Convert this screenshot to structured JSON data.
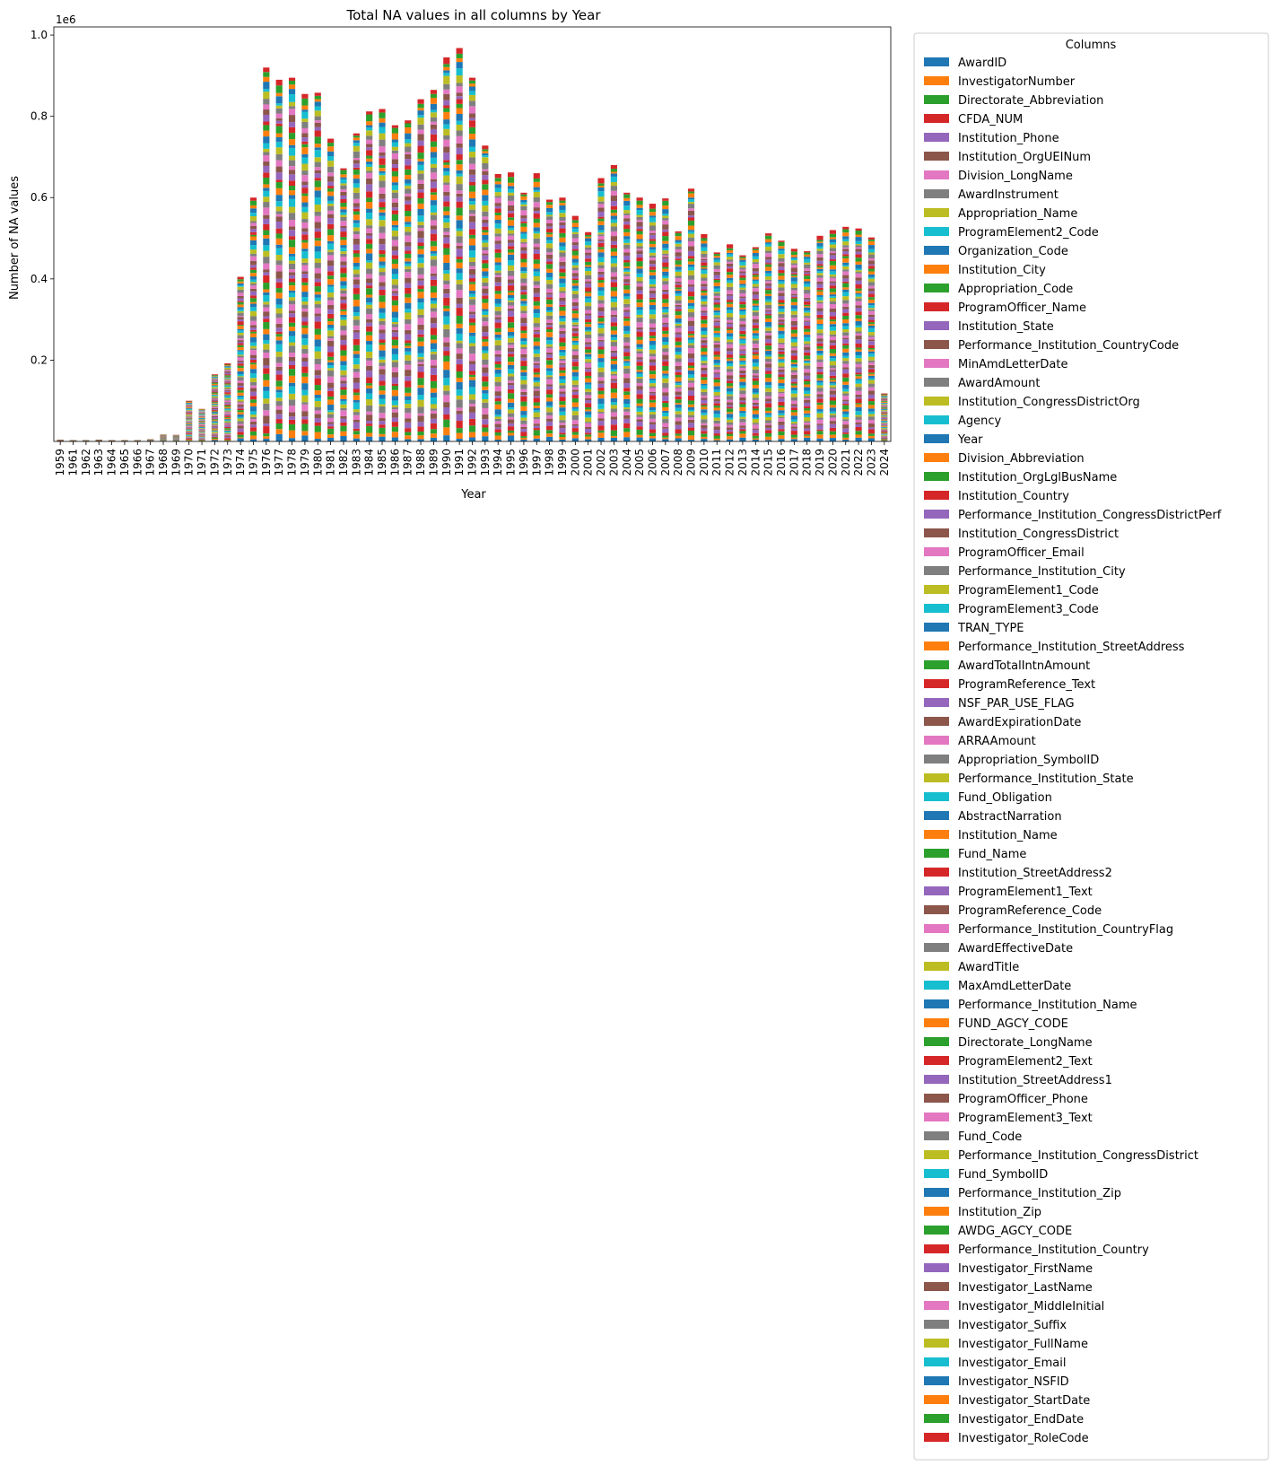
{
  "chart_data": {
    "type": "bar",
    "stacked": true,
    "title": "Total NA values in all columns by Year",
    "xlabel": "Year",
    "ylabel": "Number of NA values",
    "y_offset_label": "1e6",
    "ylim": [
      0,
      1.02
    ],
    "y_ticks": [
      "0.2",
      "0.4",
      "0.6",
      "0.8",
      "1.0"
    ],
    "y_tick_values": [
      0.2,
      0.4,
      0.6,
      0.8,
      1.0
    ],
    "grid": false,
    "legend_title": "Columns",
    "legend_placement": "outside-right",
    "categories": [
      "1959",
      "1961",
      "1962",
      "1963",
      "1964",
      "1965",
      "1966",
      "1967",
      "1968",
      "1969",
      "1970",
      "1971",
      "1972",
      "1973",
      "1974",
      "1975",
      "1976",
      "1977",
      "1978",
      "1979",
      "1980",
      "1981",
      "1982",
      "1983",
      "1984",
      "1985",
      "1986",
      "1987",
      "1988",
      "1989",
      "1990",
      "1991",
      "1992",
      "1993",
      "1994",
      "1995",
      "1996",
      "1997",
      "1998",
      "1999",
      "2000",
      "2001",
      "2002",
      "2003",
      "2004",
      "2005",
      "2006",
      "2007",
      "2008",
      "2009",
      "2010",
      "2011",
      "2012",
      "2013",
      "2014",
      "2015",
      "2016",
      "2017",
      "2018",
      "2019",
      "2020",
      "2021",
      "2022",
      "2023",
      "2024"
    ],
    "totals": [
      0.004,
      0.003,
      0.003,
      0.004,
      0.003,
      0.003,
      0.003,
      0.005,
      0.017,
      0.016,
      0.1,
      0.08,
      0.165,
      0.192,
      0.405,
      0.6,
      0.92,
      0.89,
      0.895,
      0.855,
      0.858,
      0.745,
      0.672,
      0.758,
      0.812,
      0.818,
      0.778,
      0.79,
      0.842,
      0.865,
      0.945,
      0.968,
      0.895,
      0.728,
      0.658,
      0.662,
      0.612,
      0.66,
      0.595,
      0.6,
      0.555,
      0.515,
      0.648,
      0.68,
      0.612,
      0.6,
      0.585,
      0.598,
      0.517,
      0.622,
      0.51,
      0.465,
      0.485,
      0.458,
      0.478,
      0.512,
      0.494,
      0.474,
      0.468,
      0.506,
      0.52,
      0.528,
      0.524,
      0.502,
      0.118
    ],
    "series_names": [
      "AwardID",
      "InvestigatorNumber",
      "Directorate_Abbreviation",
      "CFDA_NUM",
      "Institution_Phone",
      "Institution_OrgUEINum",
      "Division_LongName",
      "AwardInstrument",
      "Appropriation_Name",
      "ProgramElement2_Code",
      "Organization_Code",
      "Institution_City",
      "Appropriation_Code",
      "ProgramOfficer_Name",
      "Institution_State",
      "Performance_Institution_CountryCode",
      "MinAmdLetterDate",
      "AwardAmount",
      "Institution_CongressDistrictOrg",
      "Agency",
      "Year",
      "Division_Abbreviation",
      "Institution_OrgLglBusName",
      "Institution_Country",
      "Performance_Institution_CongressDistrictPerf",
      "Institution_CongressDistrict",
      "ProgramOfficer_Email",
      "Performance_Institution_City",
      "ProgramElement1_Code",
      "ProgramElement3_Code",
      "TRAN_TYPE",
      "Performance_Institution_StreetAddress",
      "AwardTotalIntnAmount",
      "ProgramReference_Text",
      "NSF_PAR_USE_FLAG",
      "AwardExpirationDate",
      "ARRAAmount",
      "Appropriation_SymbolID",
      "Performance_Institution_State",
      "Fund_Obligation",
      "AbstractNarration",
      "Institution_Name",
      "Fund_Name",
      "Institution_StreetAddress2",
      "ProgramElement1_Text",
      "ProgramReference_Code",
      "Performance_Institution_CountryFlag",
      "AwardEffectiveDate",
      "AwardTitle",
      "MaxAmdLetterDate",
      "Performance_Institution_Name",
      "FUND_AGCY_CODE",
      "Directorate_LongName",
      "ProgramElement2_Text",
      "Institution_StreetAddress1",
      "ProgramOfficer_Phone",
      "ProgramElement3_Text",
      "Fund_Code",
      "Performance_Institution_CongressDistrict",
      "Fund_SymbolID",
      "Performance_Institution_Zip",
      "Institution_Zip",
      "AWDG_AGCY_CODE",
      "Performance_Institution_Country",
      "Investigator_FirstName",
      "Investigator_LastName",
      "Investigator_MiddleInitial",
      "Investigator_Suffix",
      "Investigator_FullName",
      "Investigator_Email",
      "Investigator_NSFID",
      "Investigator_StartDate",
      "Investigator_EndDate",
      "Investigator_RoleCode"
    ],
    "palette": [
      "#1f77b4",
      "#ff7f0e",
      "#2ca02c",
      "#d62728",
      "#9467bd",
      "#8c564b",
      "#e377c2",
      "#7f7f7f",
      "#bcbd22",
      "#17becf"
    ]
  }
}
